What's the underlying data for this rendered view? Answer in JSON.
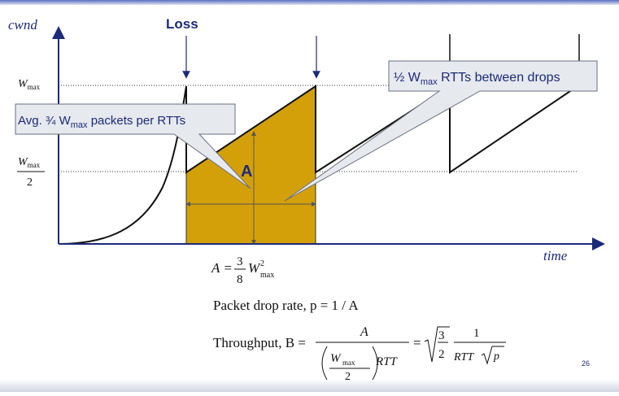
{
  "axes": {
    "y_label": "cwnd",
    "x_label": "time"
  },
  "labels": {
    "loss": "Loss",
    "area": "A",
    "wmax_W": "W",
    "wmax_sub": "max",
    "half_den": "2"
  },
  "callouts": {
    "left": {
      "prefix": "Avg. ¾ W",
      "sub": "max",
      "suffix": " packets per RTTs"
    },
    "right": {
      "prefix": "½ W",
      "sub": "max",
      "suffix": " RTTs between drops"
    }
  },
  "equations": {
    "area": {
      "lhs": "A =",
      "num": "3",
      "den": "8",
      "W": "W",
      "sup": "2",
      "sub": "max"
    },
    "drop_rate": "Packet drop rate, p = 1 / A",
    "throughput": {
      "lhs": "Throughput, B =",
      "frac_num": "A",
      "inner_num": "W",
      "inner_sub": "max",
      "inner_den": "2",
      "rtt": "RTT",
      "eq": "=",
      "sqrt_num": "3",
      "sqrt_den": "2",
      "one": "1",
      "rtt2": "RTT",
      "p": "p"
    }
  },
  "slide_number": "26",
  "colors": {
    "axis": "#1c2a7a",
    "curve": "#111111",
    "area_fill": "#d4a00a",
    "callout_fill": "#e6e9ee",
    "callout_border": "#6a7080",
    "loss_text": "#1c2a7a"
  }
}
